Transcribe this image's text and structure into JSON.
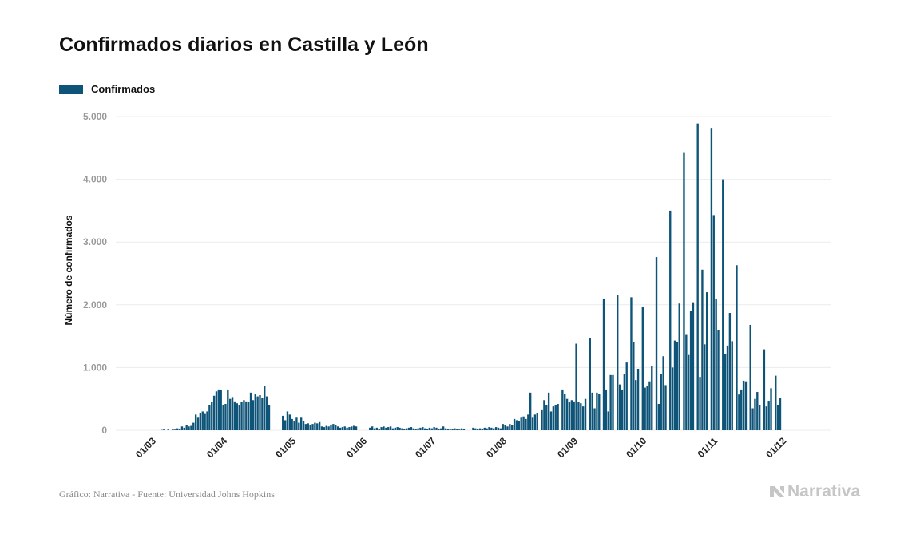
{
  "title": "Confirmados diarios en Castilla y León",
  "footer": {
    "source": "Gráfico: Narrativa - Fuente: Universidad Johns Hopkins",
    "brand": "Narrativa"
  },
  "colors": {
    "bar": "#0e5478",
    "grid": "#ececec",
    "brand": "#c6c6c6"
  },
  "chart_data": {
    "type": "bar",
    "ylabel": "Número de confirmados",
    "ylim": [
      0,
      5000
    ],
    "yticks": [
      {
        "value": 0,
        "label": "0"
      },
      {
        "value": 1000,
        "label": "1.000"
      },
      {
        "value": 2000,
        "label": "2.000"
      },
      {
        "value": 3000,
        "label": "3.000"
      },
      {
        "value": 4000,
        "label": "4.000"
      },
      {
        "value": 5000,
        "label": "5.000"
      }
    ],
    "xticks": [
      "01/03",
      "01/04",
      "01/05",
      "01/06",
      "01/07",
      "01/08",
      "01/09",
      "01/10",
      "01/11",
      "01/12"
    ],
    "x_start": "2020-03-01",
    "grid": true,
    "legend_position": "top-left",
    "series": [
      {
        "name": "Confirmados",
        "values": [
          0,
          0,
          0,
          0,
          0,
          5,
          10,
          0,
          10,
          0,
          15,
          10,
          30,
          20,
          60,
          40,
          80,
          60,
          70,
          120,
          250,
          200,
          280,
          300,
          260,
          300,
          400,
          450,
          550,
          620,
          650,
          640,
          400,
          420,
          650,
          500,
          530,
          460,
          430,
          400,
          450,
          480,
          460,
          450,
          600,
          480,
          580,
          540,
          560,
          520,
          700,
          540,
          400,
          0,
          0,
          0,
          0,
          0,
          230,
          160,
          300,
          250,
          180,
          150,
          200,
          120,
          200,
          140,
          100,
          110,
          80,
          100,
          120,
          110,
          130,
          60,
          50,
          70,
          60,
          90,
          100,
          80,
          60,
          40,
          50,
          60,
          40,
          50,
          60,
          70,
          60,
          0,
          0,
          0,
          0,
          0,
          40,
          60,
          30,
          40,
          20,
          50,
          60,
          40,
          50,
          60,
          30,
          40,
          50,
          40,
          30,
          20,
          30,
          40,
          50,
          30,
          20,
          30,
          40,
          50,
          30,
          20,
          40,
          30,
          50,
          40,
          20,
          30,
          60,
          30,
          20,
          10,
          20,
          30,
          20,
          10,
          30,
          20,
          0,
          0,
          0,
          40,
          30,
          20,
          30,
          20,
          40,
          30,
          50,
          40,
          30,
          50,
          40,
          30,
          100,
          80,
          60,
          100,
          80,
          180,
          160,
          150,
          200,
          220,
          180,
          250,
          600,
          200,
          250,
          280,
          0,
          320,
          480,
          400,
          600,
          300,
          380,
          400,
          420,
          0,
          650,
          580,
          500,
          450,
          480,
          460,
          1380,
          450,
          430,
          380,
          500,
          0,
          1470,
          600,
          350,
          600,
          580,
          0,
          2100,
          650,
          300,
          880,
          880,
          0,
          2160,
          730,
          650,
          900,
          1080,
          0,
          2120,
          1400,
          800,
          980,
          0,
          1970,
          680,
          700,
          780,
          1020,
          0,
          2760,
          420,
          900,
          1180,
          720,
          0,
          3500,
          1000,
          1430,
          1410,
          2020,
          0,
          4420,
          1520,
          1200,
          1900,
          2040,
          0,
          4890,
          850,
          2560,
          1370,
          2200,
          0,
          4820,
          3430,
          2090,
          1600,
          0,
          4000,
          1220,
          1350,
          1870,
          1420,
          0,
          2630,
          570,
          650,
          790,
          780,
          0,
          1680,
          350,
          500,
          610,
          400,
          0,
          1290,
          380,
          470,
          670,
          0,
          870,
          400,
          510
        ]
      }
    ]
  }
}
